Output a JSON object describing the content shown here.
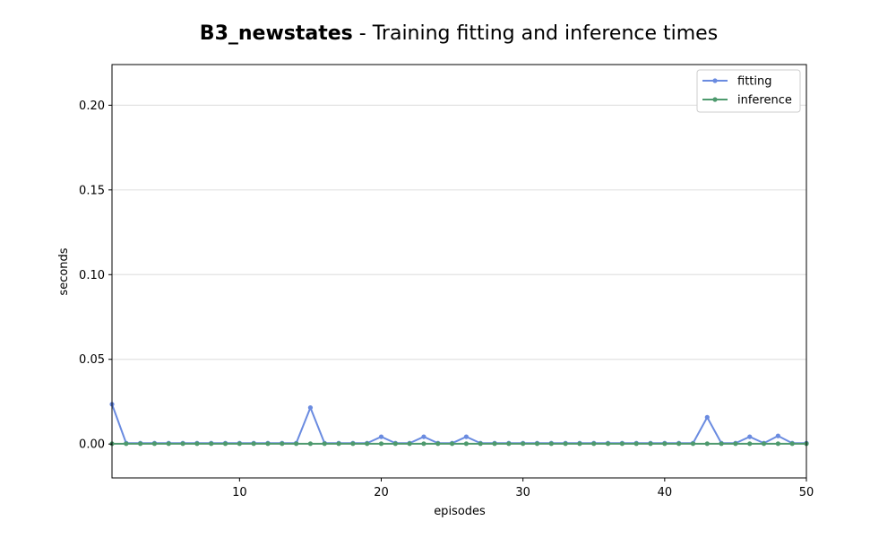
{
  "chart_data": {
    "type": "line",
    "title_bold": "B3_newstates",
    "title_rest": " - Training fitting and inference times",
    "xlabel": "episodes",
    "ylabel": "seconds",
    "xlim": [
      1,
      50
    ],
    "ylim": [
      -0.02,
      0.224
    ],
    "xticks": [
      10,
      20,
      30,
      40,
      50
    ],
    "yticks": [
      0.0,
      0.05,
      0.1,
      0.15,
      0.2
    ],
    "ytick_labels": [
      "0.00",
      "0.05",
      "0.10",
      "0.15",
      "0.20"
    ],
    "grid": "horizontal",
    "legend_position": "top-right",
    "x": [
      1,
      2,
      3,
      4,
      5,
      6,
      7,
      8,
      9,
      10,
      11,
      12,
      13,
      14,
      15,
      16,
      17,
      18,
      19,
      20,
      21,
      22,
      23,
      24,
      25,
      26,
      27,
      28,
      29,
      30,
      31,
      32,
      33,
      34,
      35,
      36,
      37,
      38,
      39,
      40,
      41,
      42,
      43,
      44,
      45,
      46,
      47,
      48,
      49,
      50
    ],
    "series": [
      {
        "name": "fitting",
        "color": "#6a8be0",
        "values": [
          0.0235,
          0.0005,
          0.0005,
          0.0005,
          0.0005,
          0.0005,
          0.0005,
          0.0005,
          0.0005,
          0.0005,
          0.0005,
          0.0005,
          0.0005,
          0.0005,
          0.0215,
          0.0005,
          0.0005,
          0.0005,
          0.0005,
          0.0043,
          0.0005,
          0.0005,
          0.0043,
          0.0005,
          0.0005,
          0.0043,
          0.0005,
          0.0005,
          0.0005,
          0.0005,
          0.0005,
          0.0005,
          0.0005,
          0.0005,
          0.0005,
          0.0005,
          0.0005,
          0.0005,
          0.0005,
          0.0005,
          0.0005,
          0.0005,
          0.0158,
          0.0005,
          0.0005,
          0.0043,
          0.0005,
          0.0048,
          0.0005,
          0.0005
        ]
      },
      {
        "name": "inference",
        "color": "#4e9a6e",
        "values": [
          0.0002,
          0.0002,
          0.0002,
          0.0002,
          0.0002,
          0.0002,
          0.0002,
          0.0002,
          0.0002,
          0.0002,
          0.0002,
          0.0002,
          0.0002,
          0.0002,
          0.0002,
          0.0002,
          0.0002,
          0.0002,
          0.0002,
          0.0002,
          0.0002,
          0.0002,
          0.0002,
          0.0002,
          0.0002,
          0.0002,
          0.0002,
          0.0002,
          0.0002,
          0.0002,
          0.0002,
          0.0002,
          0.0002,
          0.0002,
          0.0002,
          0.0002,
          0.0002,
          0.0002,
          0.0002,
          0.0002,
          0.0002,
          0.0002,
          0.0002,
          0.0002,
          0.0002,
          0.0002,
          0.0002,
          0.0002,
          0.0002,
          0.0002
        ]
      }
    ]
  }
}
